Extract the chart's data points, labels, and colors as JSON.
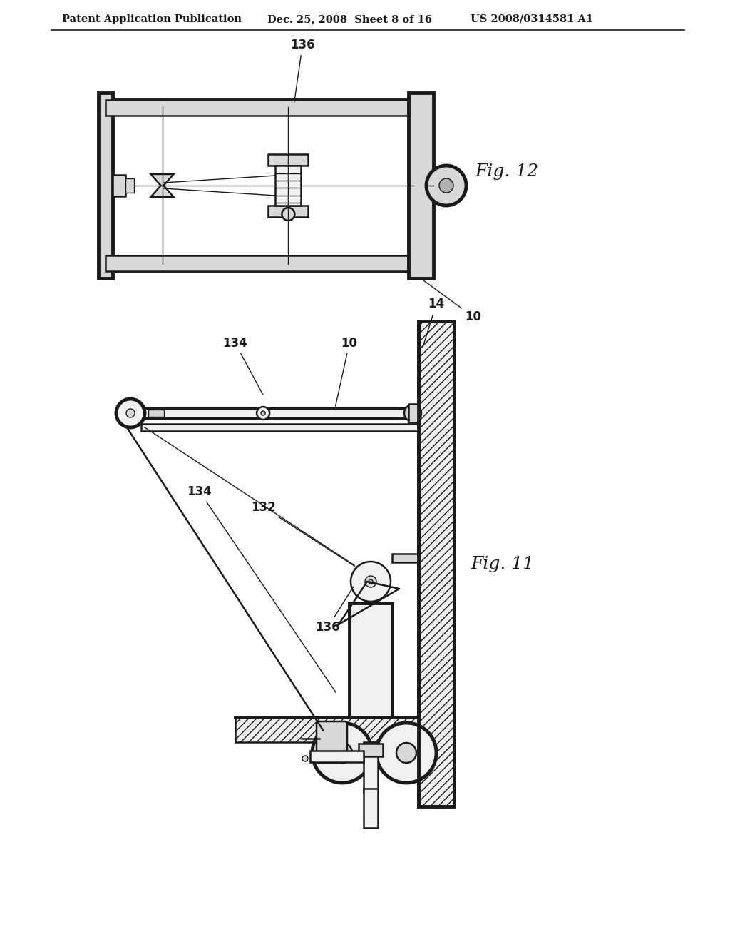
{
  "background_color": "#ffffff",
  "header_text_left": "Patent Application Publication",
  "header_text_mid": "Dec. 25, 2008  Sheet 8 of 16",
  "header_text_right": "US 2008/0314581 A1",
  "fig12_label": "Fig. 12",
  "fig11_label": "Fig. 11",
  "label_136_fig12": "136",
  "label_10_fig12": "10",
  "label_10_fig11": "10",
  "label_14_fig11": "14",
  "label_132_fig11": "132",
  "label_134a_fig11": "134",
  "label_134b_fig11": "134",
  "label_136_fig11": "136",
  "line_color": "#1a1a1a",
  "text_color": "#1a1a1a",
  "fc_white": "#ffffff",
  "fc_light": "#f0f0f0",
  "fc_mid": "#d8d8d8",
  "fc_dark": "#b0b0b0"
}
